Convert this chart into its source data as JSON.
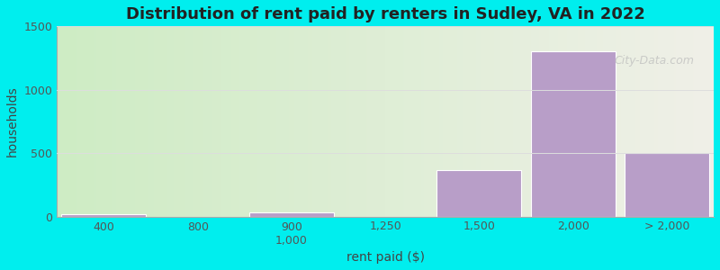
{
  "title": "Distribution of rent paid by renters in Sudley, VA in 2022",
  "xlabel": "rent paid ($)",
  "ylabel": "households",
  "background_color": "#00EEEE",
  "bar_color": "#b89ec8",
  "bar_edge_color": "#ffffff",
  "values": [
    20,
    0,
    30,
    0,
    370,
    1300,
    500
  ],
  "ylim": [
    0,
    1500
  ],
  "yticks": [
    0,
    500,
    1000,
    1500
  ],
  "title_fontsize": 13,
  "axis_label_fontsize": 10,
  "tick_fontsize": 9,
  "grid_color": "#dddddd",
  "watermark_text": "City-Data.com",
  "bg_gradient_left": "#ceecc4",
  "bg_gradient_right": "#f0f0e8"
}
